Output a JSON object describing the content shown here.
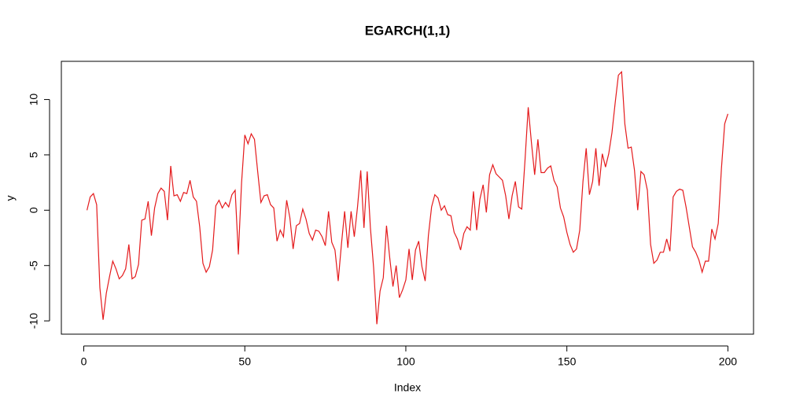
{
  "chart_data": {
    "type": "line",
    "title": "EGARCH(1,1)",
    "x_label": "Index",
    "y_label": "y",
    "x": [
      1,
      2,
      3,
      4,
      5,
      6,
      7,
      8,
      9,
      10,
      11,
      12,
      13,
      14,
      15,
      16,
      17,
      18,
      19,
      20,
      21,
      22,
      23,
      24,
      25,
      26,
      27,
      28,
      29,
      30,
      31,
      32,
      33,
      34,
      35,
      36,
      37,
      38,
      39,
      40,
      41,
      42,
      43,
      44,
      45,
      46,
      47,
      48,
      49,
      50,
      51,
      52,
      53,
      54,
      55,
      56,
      57,
      58,
      59,
      60,
      61,
      62,
      63,
      64,
      65,
      66,
      67,
      68,
      69,
      70,
      71,
      72,
      73,
      74,
      75,
      76,
      77,
      78,
      79,
      80,
      81,
      82,
      83,
      84,
      85,
      86,
      87,
      88,
      89,
      90,
      91,
      92,
      93,
      94,
      95,
      96,
      97,
      98,
      99,
      100,
      101,
      102,
      103,
      104,
      105,
      106,
      107,
      108,
      109,
      110,
      111,
      112,
      113,
      114,
      115,
      116,
      117,
      118,
      119,
      120,
      121,
      122,
      123,
      124,
      125,
      126,
      127,
      128,
      129,
      130,
      131,
      132,
      133,
      134,
      135,
      136,
      137,
      138,
      139,
      140,
      141,
      142,
      143,
      144,
      145,
      146,
      147,
      148,
      149,
      150,
      151,
      152,
      153,
      154,
      155,
      156,
      157,
      158,
      159,
      160,
      161,
      162,
      163,
      164,
      165,
      166,
      167,
      168,
      169,
      170,
      171,
      172,
      173,
      174,
      175,
      176,
      177,
      178,
      179,
      180,
      181,
      182,
      183,
      184,
      185,
      186,
      187,
      188,
      189,
      190,
      191,
      192,
      193,
      194,
      195,
      196,
      197,
      198,
      199,
      200
    ],
    "series": [
      {
        "name": "y",
        "color": "#e41a1c",
        "values": [
          0,
          1.2,
          1.5,
          0.5,
          -7,
          -9.9,
          -7.5,
          -6,
          -4.6,
          -5.3,
          -6.2,
          -5.9,
          -5.3,
          -3.1,
          -6.2,
          -6,
          -4.9,
          -0.9,
          -0.8,
          0.8,
          -2.3,
          0.2,
          1.5,
          2,
          1.7,
          -0.9,
          4,
          1.3,
          1.4,
          0.8,
          1.6,
          1.5,
          2.7,
          1.2,
          0.8,
          -1.5,
          -4.8,
          -5.6,
          -5.1,
          -3.6,
          0.4,
          0.9,
          0.2,
          0.7,
          0.3,
          1.4,
          1.8,
          -4,
          2.5,
          6.8,
          6,
          6.9,
          6.4,
          3.5,
          0.7,
          1.3,
          1.4,
          0.5,
          0.2,
          -2.8,
          -1.8,
          -2.4,
          0.9,
          -0.7,
          -3.5,
          -1.4,
          -1.2,
          0.1,
          -0.8,
          -2.1,
          -2.7,
          -1.8,
          -1.9,
          -2.4,
          -3.2,
          -0.1,
          -2.9,
          -3.6,
          -6.4,
          -3.1,
          -0.1,
          -3.4,
          -0.1,
          -2.4,
          0.3,
          3.6,
          -1.6,
          3.5,
          -1.6,
          -5.2,
          -10.3,
          -7.3,
          -6.1,
          -1.4,
          -4.3,
          -6.9,
          -5,
          -7.9,
          -7.2,
          -6.3,
          -3.5,
          -6.3,
          -3.6,
          -2.8,
          -5.1,
          -6.4,
          -2.3,
          0.3,
          1.4,
          1.1,
          0,
          0.4,
          -0.4,
          -0.5,
          -2,
          -2.6,
          -3.6,
          -2.1,
          -1.5,
          -1.8,
          1.7,
          -1.8,
          1,
          2.3,
          -0.2,
          3.2,
          4.1,
          3.3,
          3,
          2.7,
          1.3,
          -0.8,
          1.3,
          2.6,
          0.3,
          0.1,
          4.5,
          9.3,
          6.1,
          3.2,
          6.4,
          3.4,
          3.4,
          3.8,
          4,
          2.7,
          2.1,
          0.2,
          -0.6,
          -2,
          -3.1,
          -3.8,
          -3.5,
          -1.8,
          2.6,
          5.6,
          1.4,
          2.6,
          5.6,
          2.2,
          5.1,
          3.9,
          5.1,
          7,
          9.7,
          12.2,
          12.5,
          7.8,
          5.6,
          5.7,
          3.6,
          0,
          3.5,
          3.2,
          1.8,
          -3.1,
          -4.8,
          -4.5,
          -3.8,
          -3.8,
          -2.6,
          -3.7,
          1.2,
          1.7,
          1.9,
          1.8,
          0.3,
          -1.5,
          -3.3,
          -3.8,
          -4.5,
          -5.6,
          -4.6,
          -4.6,
          -1.7,
          -2.6,
          -1.2,
          3.8,
          7.8,
          8.7
        ]
      }
    ],
    "xlim": [
      -6.96,
      207.96
    ],
    "xticks": [
      0,
      50,
      100,
      150,
      200
    ],
    "ylim": [
      -11.2,
      13.45
    ],
    "yticks": [
      -10,
      -5,
      0,
      5,
      10
    ],
    "grid": false
  }
}
